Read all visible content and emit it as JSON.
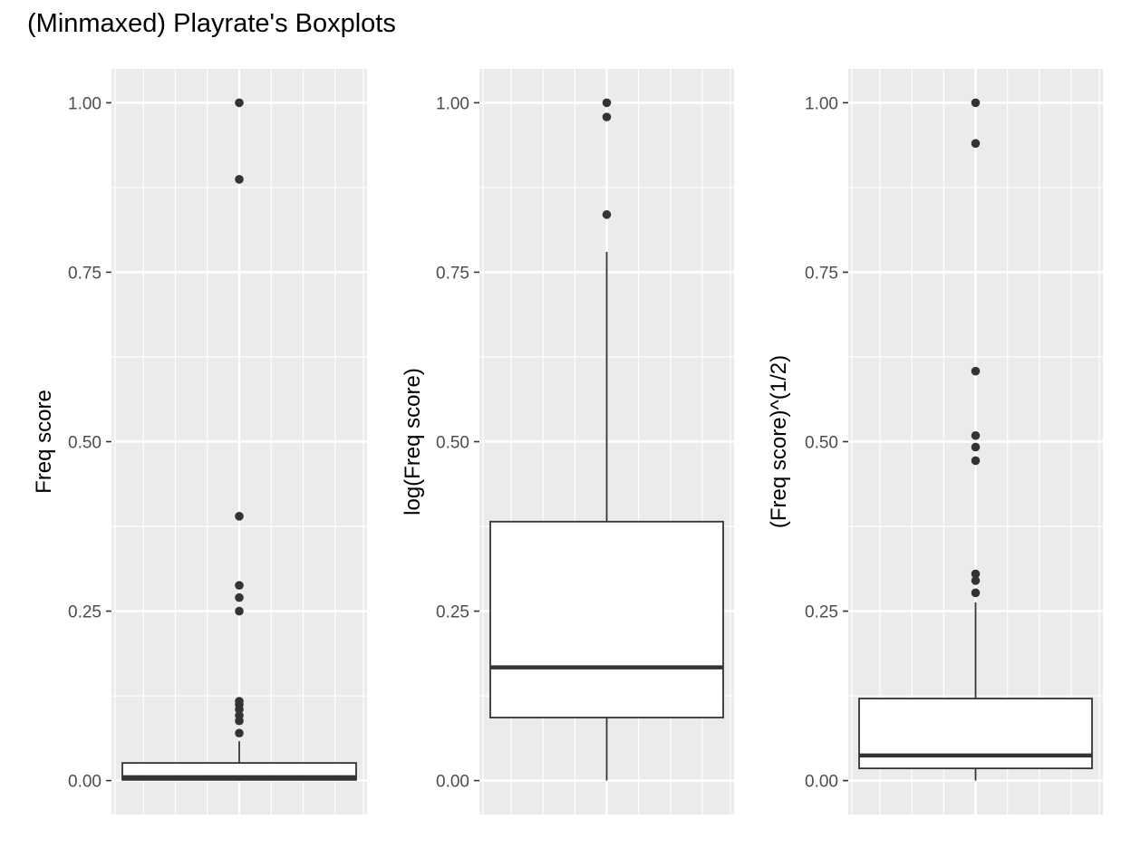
{
  "title": "(Minmaxed) Playrate's Boxplots",
  "colors": {
    "panel_bg": "#EBEBEB",
    "grid_major": "#FFFFFF",
    "grid_minor": "#F5F5F5",
    "box_fill": "#FFFFFF",
    "box_line": "#333333",
    "tick_text": "#4D4D4D"
  },
  "chart_data": [
    {
      "type": "boxplot",
      "ylabel": "Freq score",
      "ylim": [
        -0.05,
        1.05
      ],
      "yticks": [
        "0.00",
        "0.25",
        "0.50",
        "0.75",
        "1.00"
      ],
      "box": {
        "q1": 0.001,
        "median": 0.005,
        "q3": 0.026,
        "whisker_low": 0.0,
        "whisker_high": 0.058
      },
      "outliers": [
        1.0,
        0.887,
        0.39,
        0.288,
        0.27,
        0.25,
        0.117,
        0.112,
        0.105,
        0.096,
        0.088,
        0.07
      ]
    },
    {
      "type": "boxplot",
      "ylabel": "log(Freq score)",
      "ylim": [
        -0.05,
        1.05
      ],
      "yticks": [
        "0.00",
        "0.25",
        "0.50",
        "0.75",
        "1.00"
      ],
      "box": {
        "q1": 0.093,
        "median": 0.167,
        "q3": 0.382,
        "whisker_low": 0.0,
        "whisker_high": 0.78
      },
      "outliers": [
        1.0,
        0.979,
        0.835
      ]
    },
    {
      "type": "boxplot",
      "ylabel": "(Freq score)^(1/2)",
      "ylim": [
        -0.05,
        1.05
      ],
      "yticks": [
        "0.00",
        "0.25",
        "0.50",
        "0.75",
        "1.00"
      ],
      "box": {
        "q1": 0.018,
        "median": 0.037,
        "q3": 0.121,
        "whisker_low": 0.0,
        "whisker_high": 0.263
      },
      "outliers": [
        1.0,
        0.94,
        0.604,
        0.509,
        0.492,
        0.472,
        0.305,
        0.295,
        0.277
      ]
    }
  ]
}
